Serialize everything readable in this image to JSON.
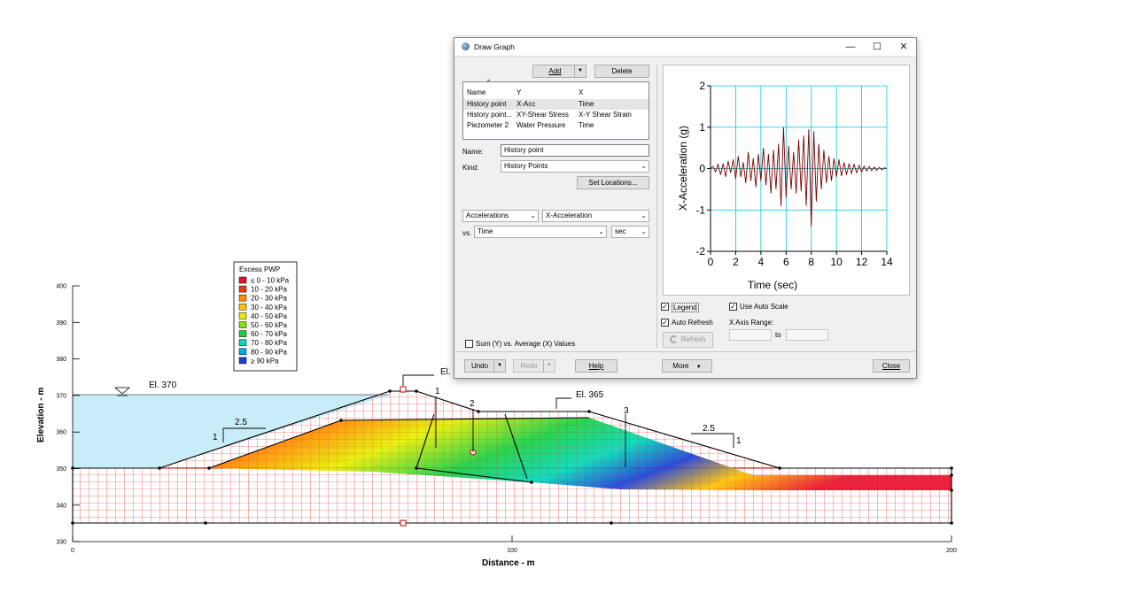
{
  "dam": {
    "legend_title": "Excess PWP",
    "legend_items": [
      {
        "label": "≤ 0 - 10 kPa",
        "color": "#e8102e"
      },
      {
        "label": "10 - 20 kPa",
        "color": "#f03a10"
      },
      {
        "label": "20 - 30 kPa",
        "color": "#ff8c00"
      },
      {
        "label": "30 - 40 kPa",
        "color": "#ffc400"
      },
      {
        "label": "40 - 50 kPa",
        "color": "#e4f000"
      },
      {
        "label": "50 - 60 kPa",
        "color": "#88e000"
      },
      {
        "label": "60 - 70 kPa",
        "color": "#18d040"
      },
      {
        "label": "70 - 80 kPa",
        "color": "#00d8b8"
      },
      {
        "label": "80 - 90 kPa",
        "color": "#00a8e8"
      },
      {
        "label": "≥ 90 kPa",
        "color": "#1840d8"
      }
    ],
    "y_axis_title": "Elevation - m",
    "x_axis_title": "Distance - m",
    "y_ticks": [
      "400",
      "390",
      "380",
      "370",
      "360",
      "350",
      "340",
      "330"
    ],
    "x_ticks": [
      "0",
      "100",
      "200"
    ],
    "annotations": {
      "water_level": "El. 370",
      "crest_level": "El.",
      "berm_level": "El. 365",
      "slope_left_h": "2.5",
      "slope_left_v": "1",
      "slope_right_h": "2.5",
      "slope_right_v": "1",
      "point_1": "1",
      "point_2": "2",
      "point_3": "3"
    }
  },
  "dialog": {
    "title": "Draw Graph",
    "window_controls": {
      "minimize": "—",
      "maximize": "☐",
      "close": "✕"
    },
    "buttons": {
      "add": "Add",
      "delete": "Delete",
      "set_locations": "Set Locations...",
      "undo": "Undo",
      "redo": "Redo",
      "help": "Help",
      "more": "More",
      "close": "Close",
      "refresh": "Refresh"
    },
    "list": {
      "columns": [
        "Name",
        "Y",
        "X"
      ],
      "rows": [
        {
          "name": "History point",
          "y": "X-Acc",
          "x": "Time"
        },
        {
          "name": "History point...",
          "y": "XY-Shear Stress",
          "x": "X-Y Shear Strain"
        },
        {
          "name": "Piezometer 2",
          "y": "Water Pressure",
          "x": "Time"
        }
      ],
      "selected_index": 0
    },
    "name_label": "Name:",
    "name_value": "History point",
    "kind_label": "Kind:",
    "kind_value": "History Points",
    "y_category": "Accelerations",
    "y_quantity": "X-Acceleration",
    "vs_label": "vs.",
    "x_quantity": "Time",
    "x_unit": "sec",
    "sum_checkbox_label": "Sum (Y) vs. Average (X) Values",
    "sum_checked": false,
    "legend_label": "Legend",
    "legend_checked": true,
    "auto_scale_label": "Use Auto Scale",
    "auto_scale_checked": true,
    "auto_refresh_label": "Auto Refresh",
    "auto_refresh_checked": true,
    "x_axis_range_label": "X Axis Range:",
    "to_label": "to"
  },
  "chart_data": {
    "type": "line",
    "title": "",
    "xlabel": "Time (sec)",
    "ylabel": "X-Acceleration (g)",
    "xlim": [
      0,
      14
    ],
    "ylim": [
      -2,
      2
    ],
    "x_ticks": [
      0,
      2,
      4,
      6,
      8,
      10,
      12,
      14
    ],
    "y_ticks": [
      -2,
      -1,
      0,
      1,
      2
    ],
    "grid": true,
    "grid_color": "#00c8e0",
    "line_color": "#7a0000",
    "series": [
      {
        "x": [
          0,
          0.2,
          0.4,
          0.6,
          0.8,
          1.0,
          1.2,
          1.4,
          1.6,
          1.8,
          2.0,
          2.2,
          2.4,
          2.6,
          2.8,
          3.0,
          3.2,
          3.4,
          3.6,
          3.8,
          4.0,
          4.2,
          4.4,
          4.6,
          4.8,
          5.0,
          5.2,
          5.4,
          5.6,
          5.8,
          6.0,
          6.2,
          6.4,
          6.6,
          6.8,
          7.0,
          7.2,
          7.4,
          7.6,
          7.8,
          8.0,
          8.2,
          8.4,
          8.6,
          8.8,
          9.0,
          9.2,
          9.4,
          9.6,
          9.8,
          10.0,
          10.2,
          10.4,
          10.6,
          10.8,
          11.0,
          11.2,
          11.4,
          11.6,
          11.8,
          12.0,
          12.2,
          12.4,
          12.6,
          12.8,
          13.0,
          13.2,
          13.4,
          13.6,
          13.8,
          14.0
        ],
        "y": [
          0,
          0.05,
          -0.08,
          0.1,
          -0.15,
          0.12,
          -0.2,
          0.18,
          -0.1,
          0.22,
          -0.25,
          0.3,
          -0.2,
          0.15,
          -0.35,
          0.4,
          -0.3,
          0.25,
          -0.45,
          0.35,
          -0.3,
          0.5,
          -0.4,
          0.35,
          -0.6,
          0.45,
          -0.5,
          0.6,
          -0.9,
          1.0,
          -0.7,
          0.55,
          -0.5,
          0.4,
          -0.6,
          0.7,
          -0.55,
          0.8,
          -0.9,
          0.95,
          -1.4,
          0.9,
          -0.8,
          0.6,
          -0.5,
          0.45,
          -0.35,
          0.3,
          -0.3,
          0.25,
          -0.2,
          0.22,
          -0.18,
          0.15,
          -0.15,
          0.12,
          -0.12,
          0.1,
          -0.1,
          0.08,
          -0.08,
          0.06,
          -0.06,
          0.05,
          -0.05,
          0.04,
          -0.04,
          0.03,
          -0.03,
          0.02,
          0
        ]
      }
    ]
  }
}
